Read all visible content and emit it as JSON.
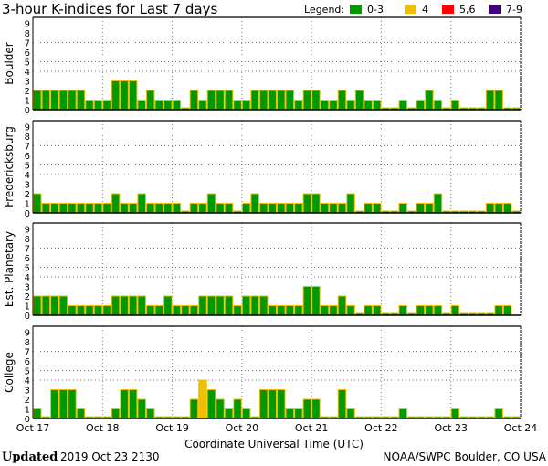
{
  "chart_data": {
    "type": "bar",
    "title": "3-hour K-indices for Last 7 days",
    "xlabel": "Coordinate Universal Time (UTC)",
    "x_tick_labels": [
      "Oct 17",
      "Oct 18",
      "Oct 19",
      "Oct 20",
      "Oct 21",
      "Oct 22",
      "Oct 23",
      "Oct 24"
    ],
    "y_tick_labels": [
      "0",
      "1",
      "2",
      "3",
      "4",
      "5",
      "6",
      "7",
      "8",
      "9"
    ],
    "ylim": [
      0,
      9
    ],
    "horizontal_gridlines": [
      4,
      5,
      7
    ],
    "vertical_gridlines": "daily, dotted",
    "bars_per_day": 8,
    "legend": {
      "label": "Legend:",
      "placement": "top-right",
      "entries": [
        {
          "label": "0-3",
          "color": "#009900"
        },
        {
          "label": "4",
          "color": "#f0c000"
        },
        {
          "label": "5,6",
          "color": "#ff0000"
        },
        {
          "label": "7-9",
          "color": "#400080"
        }
      ]
    },
    "bar_outline_color": "#f0c000",
    "panels": [
      {
        "name": "Boulder",
        "values": [
          2,
          2,
          2,
          2,
          2,
          2,
          1,
          1,
          1,
          3,
          3,
          3,
          1,
          2,
          1,
          1,
          1,
          0,
          2,
          1,
          2,
          2,
          2,
          1,
          1,
          2,
          2,
          2,
          2,
          2,
          1,
          2,
          2,
          1,
          1,
          2,
          1,
          2,
          1,
          1,
          0,
          0,
          1,
          0,
          1,
          2,
          1,
          0,
          1,
          0,
          0,
          0,
          2,
          2,
          0,
          0
        ]
      },
      {
        "name": "Fredericksburg",
        "values": [
          2,
          1,
          1,
          1,
          1,
          1,
          1,
          1,
          1,
          2,
          1,
          1,
          2,
          1,
          1,
          1,
          1,
          0,
          1,
          1,
          2,
          1,
          1,
          0,
          1,
          2,
          1,
          1,
          1,
          1,
          1,
          2,
          2,
          1,
          1,
          1,
          2,
          0,
          1,
          1,
          0,
          0,
          1,
          0,
          1,
          1,
          2,
          0,
          0,
          0,
          0,
          0,
          1,
          1,
          1,
          0
        ]
      },
      {
        "name": "Est. Planetary",
        "values": [
          2,
          2,
          2,
          2,
          1,
          1,
          1,
          1,
          1,
          2,
          2,
          2,
          2,
          1,
          1,
          2,
          1,
          1,
          1,
          2,
          2,
          2,
          2,
          1,
          2,
          2,
          2,
          1,
          1,
          1,
          1,
          3,
          3,
          1,
          1,
          2,
          1,
          0,
          1,
          1,
          0,
          0,
          1,
          0,
          1,
          1,
          1,
          0,
          1,
          0,
          0,
          0,
          0,
          1,
          1,
          null
        ]
      },
      {
        "name": "College",
        "values": [
          1,
          0,
          3,
          3,
          3,
          1,
          0,
          0,
          0,
          1,
          3,
          3,
          2,
          1,
          0,
          0,
          0,
          0,
          2,
          4,
          3,
          2,
          1,
          2,
          1,
          0,
          3,
          3,
          3,
          1,
          1,
          2,
          2,
          0,
          0,
          3,
          1,
          0,
          0,
          0,
          0,
          0,
          1,
          0,
          0,
          0,
          0,
          0,
          1,
          0,
          0,
          0,
          0,
          1,
          0,
          0
        ]
      }
    ]
  },
  "footer": {
    "updated_label": "Updated",
    "updated_value": "2019 Oct 23 2130",
    "source": "NOAA/SWPC Boulder, CO USA"
  }
}
